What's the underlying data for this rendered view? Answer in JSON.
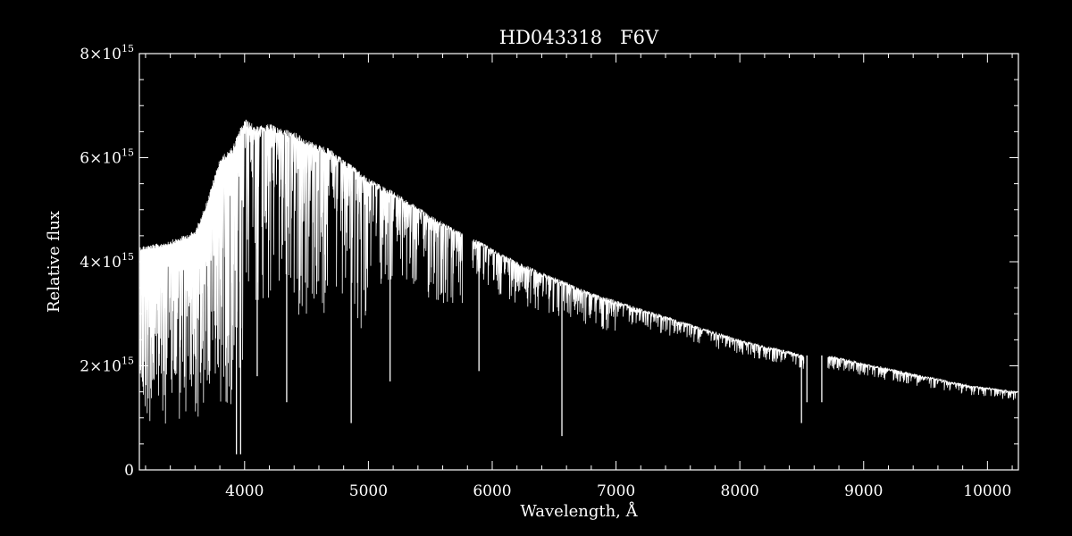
{
  "chart_data": {
    "type": "line",
    "title": "HD043318   F6V",
    "xlabel": "Wavelength, Å",
    "ylabel": "Relative flux",
    "xlim": [
      3150,
      10250
    ],
    "ylim": [
      0,
      8000000000000000.0
    ],
    "x_ticks": [
      {
        "value": 4000,
        "label": "4000"
      },
      {
        "value": 5000,
        "label": "5000"
      },
      {
        "value": 6000,
        "label": "6000"
      },
      {
        "value": 7000,
        "label": "7000"
      },
      {
        "value": 8000,
        "label": "8000"
      },
      {
        "value": 9000,
        "label": "9000"
      },
      {
        "value": 10000,
        "label": "10000"
      }
    ],
    "y_ticks": [
      {
        "value": 0,
        "mantissa": "0",
        "exponent": ""
      },
      {
        "value": 2000000000000000.0,
        "mantissa": "2×10",
        "exponent": "15"
      },
      {
        "value": 4000000000000000.0,
        "mantissa": "4×10",
        "exponent": "15"
      },
      {
        "value": 6000000000000000.0,
        "mantissa": "6×10",
        "exponent": "15"
      },
      {
        "value": 8000000000000000.0,
        "mantissa": "8×10",
        "exponent": "15"
      }
    ],
    "x_minor_step": 200,
    "y_minor_step": 500000000000000.0,
    "grid": false,
    "colors": {
      "background": "#000000",
      "foreground": "#ffffff"
    },
    "series": [
      {
        "continuum": [
          [
            3150,
            4300000000000000.0
          ],
          [
            3300,
            4350000000000000.0
          ],
          [
            3450,
            4450000000000000.0
          ],
          [
            3600,
            4600000000000000.0
          ],
          [
            3700,
            5200000000000000.0
          ],
          [
            3800,
            6000000000000000.0
          ],
          [
            3900,
            6200000000000000.0
          ],
          [
            4000,
            6750000000000000.0
          ],
          [
            4100,
            6600000000000000.0
          ],
          [
            4200,
            6650000000000000.0
          ],
          [
            4300,
            6550000000000000.0
          ],
          [
            4400,
            6500000000000000.0
          ],
          [
            4500,
            6350000000000000.0
          ],
          [
            4600,
            6250000000000000.0
          ],
          [
            4700,
            6150000000000000.0
          ],
          [
            4800,
            5950000000000000.0
          ],
          [
            4900,
            5800000000000000.0
          ],
          [
            5000,
            5600000000000000.0
          ],
          [
            5200,
            5350000000000000.0
          ],
          [
            5400,
            5050000000000000.0
          ],
          [
            5600,
            4750000000000000.0
          ],
          [
            5760,
            4550000000000000.0
          ],
          [
            5850,
            4450000000000000.0
          ],
          [
            6000,
            4250000000000000.0
          ],
          [
            6200,
            4000000000000000.0
          ],
          [
            6400,
            3800000000000000.0
          ],
          [
            6600,
            3600000000000000.0
          ],
          [
            6800,
            3400000000000000.0
          ],
          [
            7000,
            3250000000000000.0
          ],
          [
            7200,
            3100000000000000.0
          ],
          [
            7400,
            2950000000000000.0
          ],
          [
            7600,
            2800000000000000.0
          ],
          [
            7800,
            2650000000000000.0
          ],
          [
            8000,
            2500000000000000.0
          ],
          [
            8200,
            2380000000000000.0
          ],
          [
            8400,
            2280000000000000.0
          ],
          [
            8520,
            2200000000000000.0
          ],
          [
            8720,
            2200000000000000.0
          ],
          [
            9000,
            2050000000000000.0
          ],
          [
            9200,
            1950000000000000.0
          ],
          [
            9400,
            1850000000000000.0
          ],
          [
            9600,
            1750000000000000.0
          ],
          [
            9800,
            1650000000000000.0
          ],
          [
            10000,
            1580000000000000.0
          ],
          [
            10250,
            1500000000000000.0
          ]
        ],
        "gaps": [
          [
            5760,
            5840
          ],
          [
            8520,
            8710
          ]
        ],
        "absorption_lines": [
          {
            "x": 3934,
            "y": 300000000000000.0
          },
          {
            "x": 3968,
            "y": 300000000000000.0
          },
          {
            "x": 4102,
            "y": 1800000000000000.0
          },
          {
            "x": 4340,
            "y": 1300000000000000.0
          },
          {
            "x": 4861,
            "y": 900000000000000.0
          },
          {
            "x": 5175,
            "y": 1700000000000000.0
          },
          {
            "x": 5893,
            "y": 1900000000000000.0
          },
          {
            "x": 6563,
            "y": 650000000000000.0
          },
          {
            "x": 8498,
            "y": 900000000000000.0
          },
          {
            "x": 8542,
            "y": 1300000000000000.0
          },
          {
            "x": 8662,
            "y": 1300000000000000.0
          }
        ]
      }
    ]
  }
}
